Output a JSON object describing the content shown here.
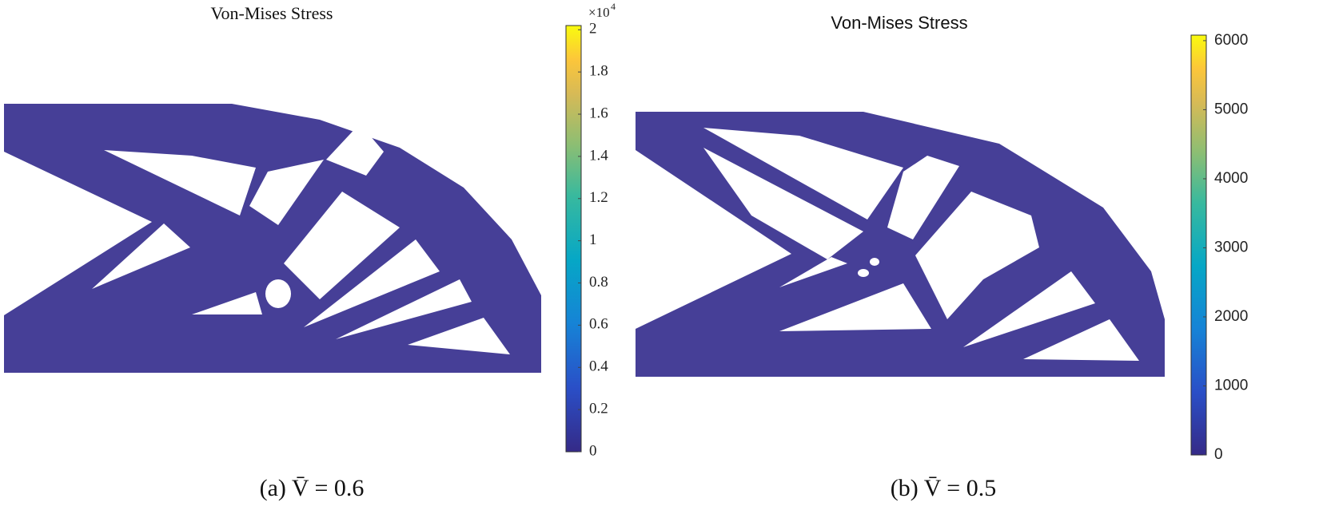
{
  "panels": [
    {
      "title": "Von-Mises Stress",
      "colorbar": {
        "lim": [
          0,
          2.02
        ],
        "ticks": [
          0,
          0.2,
          0.4,
          0.6,
          0.8,
          1,
          1.2,
          1.4,
          1.6,
          1.8,
          2
        ],
        "multiplier": {
          "base": "×10",
          "exponent": "4"
        }
      },
      "caption": "(a) V̄ = 0.6"
    },
    {
      "title": "Von-Mises Stress",
      "colorbar": {
        "lim": [
          0,
          6080
        ],
        "ticks": [
          0,
          1000,
          2000,
          3000,
          4000,
          5000,
          6000
        ]
      },
      "caption": "(b) V̄ = 0.5"
    }
  ]
}
